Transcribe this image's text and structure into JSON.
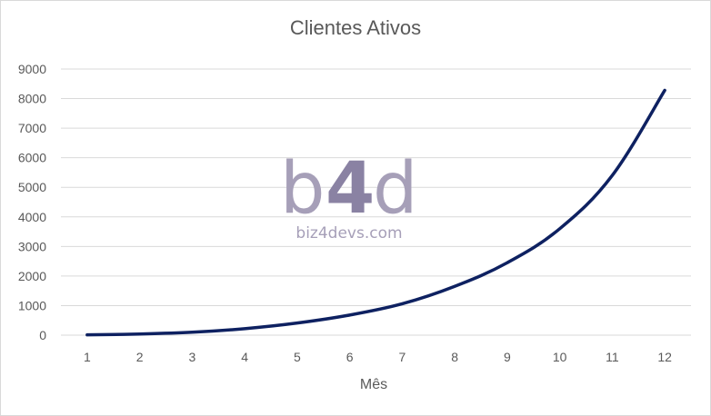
{
  "chart_data": {
    "type": "line",
    "title": "Clientes Ativos",
    "xlabel": "Mês",
    "ylabel": "",
    "categories": [
      "1",
      "2",
      "3",
      "4",
      "5",
      "6",
      "7",
      "8",
      "9",
      "10",
      "11",
      "12"
    ],
    "values": [
      10,
      40,
      100,
      220,
      410,
      680,
      1060,
      1650,
      2450,
      3600,
      5400,
      8280
    ],
    "ylim": [
      0,
      9000
    ],
    "yticks": [
      0,
      1000,
      2000,
      3000,
      4000,
      5000,
      6000,
      7000,
      8000,
      9000
    ],
    "grid": true,
    "legend": "none",
    "line_color": "#0e2161",
    "grid_color": "#d9d9d9"
  },
  "watermark": {
    "logo_b": "b",
    "logo_4": "4",
    "logo_d": "d",
    "url": "biz4devs.com",
    "logo_color": "#a69fb8",
    "four_color": "#8a82a3"
  }
}
